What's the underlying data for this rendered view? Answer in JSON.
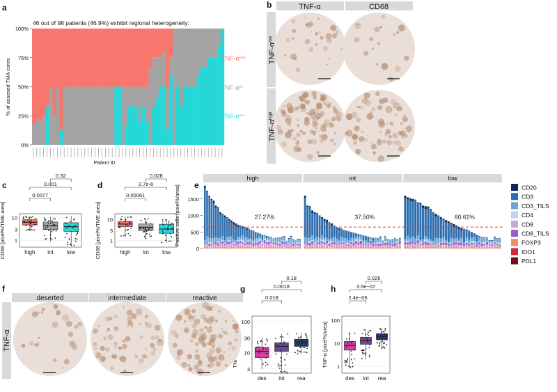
{
  "panel_labels": {
    "a": "a",
    "b": "b",
    "c": "c",
    "d": "d",
    "e": "e",
    "f": "f",
    "g": "g",
    "h": "h"
  },
  "colors": {
    "tnf_high": "#f8766d",
    "tnf_int": "#a3a3a3",
    "tnf_low": "#26d7d8",
    "strip": "#d9d9d9",
    "des": "#d63fa0",
    "int_g": "#6a4a96",
    "rea": "#1f3b73",
    "cd20": "#0b2a57",
    "cd3": "#2e6fb0",
    "cd3_tils": "#6aa6d8",
    "cd4": "#bcd6ea",
    "cd8": "#c9a8d6",
    "cd8_tils": "#9b59c6",
    "foxp3": "#f08a67",
    "ido1": "#cf2a3e",
    "pdl1": "#6b0e1e",
    "threshold": "#e23b3b",
    "tissue_bg": "#e9dfd8",
    "tissue_stain": "#b58a6d"
  },
  "chart_data": [
    {
      "id": "a",
      "type": "bar",
      "stacked": true,
      "title": "46 out of 98 patients (46.9%) exhibit regional heterogeneity:",
      "xlabel": "Patient ID",
      "ylabel": "% of assesed TMA cores",
      "yticks": [
        "0%",
        "25%",
        "50%",
        "75%",
        "100%"
      ],
      "ylim": [
        0,
        100
      ],
      "series_labels": {
        "high": "TNF-α",
        "high_sup": "high",
        "int": "TNF-α",
        "int_sup": "int",
        "low": "TNF-α",
        "low_sup": "low"
      },
      "patients_high_pct": [
        82,
        78,
        80,
        75,
        67,
        50,
        75,
        50,
        87,
        50,
        50,
        50,
        50,
        50,
        50,
        50,
        50,
        50,
        50,
        50,
        50,
        50,
        50,
        50,
        50,
        50,
        50,
        50,
        50,
        50,
        50,
        50,
        50,
        50,
        33,
        25,
        25,
        25,
        20,
        50,
        25,
        0,
        0,
        0,
        0,
        0,
        0,
        0,
        0,
        0,
        0,
        0,
        0,
        0,
        0,
        0
      ],
      "patients_low_pct": [
        0,
        0,
        0,
        0,
        33,
        0,
        0,
        0,
        13,
        0,
        0,
        0,
        0,
        0,
        0,
        0,
        0,
        0,
        0,
        0,
        0,
        0,
        0,
        0,
        50,
        50,
        0,
        17,
        33,
        33,
        33,
        20,
        33,
        20,
        0,
        33,
        40,
        50,
        50,
        14,
        60,
        0,
        50,
        33,
        50,
        50,
        50,
        50,
        60,
        67,
        67,
        75,
        75,
        75,
        85,
        100
      ]
    },
    {
      "id": "b",
      "type": "image-grid",
      "col_headers": [
        "TNF-α",
        "CD68"
      ],
      "row_headers": [
        {
          "base": "TNF-α",
          "sup": "low"
        },
        {
          "base": "TNF-α",
          "sup": "high"
        }
      ]
    },
    {
      "id": "c",
      "type": "box",
      "ylabel": "CD68 [pixel%/TME area]",
      "ylog": true,
      "yticks": [
        "1",
        "3",
        "10"
      ],
      "categories": [
        "high",
        "int",
        "low"
      ],
      "boxes": [
        {
          "q1": 4.8,
          "med": 6.3,
          "q3": 8.2,
          "lo": 2.7,
          "hi": 12
        },
        {
          "q1": 3.0,
          "med": 4.4,
          "q3": 6.5,
          "lo": 0.9,
          "hi": 11
        },
        {
          "q1": 2.5,
          "med": 4.0,
          "q3": 6.0,
          "lo": 0.6,
          "hi": 12
        }
      ],
      "pvalues": [
        "0.0077",
        "0.001",
        "0.32"
      ]
    },
    {
      "id": "d",
      "type": "box",
      "ylabel": "CD68 [pixel%/TME area]",
      "ylog": true,
      "yticks": [
        "1",
        "3",
        "10"
      ],
      "categories": [
        "high",
        "int",
        "low"
      ],
      "boxes": [
        {
          "q1": 4.5,
          "med": 6.0,
          "q3": 8.0,
          "lo": 1.5,
          "hi": 14
        },
        {
          "q1": 3.0,
          "med": 4.2,
          "q3": 6.0,
          "lo": 1.2,
          "hi": 11
        },
        {
          "q1": 2.2,
          "med": 3.5,
          "q3": 5.8,
          "lo": 0.8,
          "hi": 10
        }
      ],
      "pvalues": [
        "0.00061",
        "2.7e-6",
        "0.028"
      ]
    },
    {
      "id": "e",
      "type": "bar",
      "stacked": true,
      "ylabel": "Positive cells [pixel%/area]",
      "yticks": [
        "0",
        "500",
        "1000",
        "1500"
      ],
      "ylim": [
        0,
        2000
      ],
      "facets": [
        "high",
        "int",
        "low"
      ],
      "threshold": 650,
      "percentages": [
        "27.27%",
        "37.50%",
        "60.61%"
      ],
      "legend": [
        "CD20",
        "CD3",
        "CD3_TILS",
        "CD4",
        "CD8",
        "CD8_TILS",
        "FOXP3",
        "IDO1",
        "PDL1"
      ],
      "totals": [
        [
          1900,
          1750,
          1600,
          1500,
          1450,
          1300,
          1250,
          1100,
          1050,
          1000,
          950,
          900,
          850,
          800,
          760,
          720,
          700,
          680,
          650,
          620,
          600,
          560,
          540,
          500,
          470,
          450,
          420,
          400,
          380,
          360,
          320,
          300,
          280,
          250,
          220,
          200,
          170,
          150,
          120,
          100,
          80,
          60,
          50,
          40
        ],
        [
          1600,
          1300,
          1280,
          1150,
          1100,
          1080,
          1000,
          950,
          900,
          870,
          800,
          760,
          700,
          650,
          620,
          600,
          560,
          540,
          520,
          500,
          480,
          460,
          440,
          420,
          400,
          380,
          360,
          340,
          320,
          300,
          280,
          260,
          240,
          220,
          200,
          180,
          150,
          120,
          90,
          60
        ],
        [
          1600,
          1550,
          1520,
          1500,
          1480,
          1400,
          1380,
          1300,
          1280,
          1270,
          1200,
          1100,
          1050,
          1000,
          950,
          900,
          860,
          820,
          780,
          740,
          700,
          660,
          620,
          600,
          580,
          540,
          500,
          460,
          420,
          380,
          350,
          300,
          260,
          220,
          180,
          150,
          120,
          90
        ]
      ]
    },
    {
      "id": "f",
      "type": "image-strip",
      "panels": [
        "deserted",
        "intermediate",
        "reactive"
      ],
      "row_label": "TNF-α"
    },
    {
      "id": "g",
      "type": "box",
      "ylabel": "TNF-α [pixel%/area]",
      "ylog": true,
      "yticks": [
        "3",
        "10",
        "30",
        "100"
      ],
      "categories": [
        "des",
        "int",
        "rea"
      ],
      "boxes": [
        {
          "q1": 7,
          "med": 11,
          "q3": 15,
          "lo": 3,
          "hi": 30
        },
        {
          "q1": 11,
          "med": 16,
          "q3": 21,
          "lo": 2.2,
          "hi": 40
        },
        {
          "q1": 16,
          "med": 21,
          "q3": 27,
          "lo": 9,
          "hi": 42
        }
      ],
      "pvalues": [
        "0.018",
        "0.0018",
        "0.18"
      ]
    },
    {
      "id": "h",
      "type": "box",
      "ylabel": "TNF-α [pixel%/area]",
      "ylog": true,
      "yticks": [
        "1",
        "10",
        "100"
      ],
      "categories": [
        "des",
        "int",
        "rea"
      ],
      "boxes": [
        {
          "q1": 5,
          "med": 8,
          "q3": 12,
          "lo": 0.8,
          "hi": 30
        },
        {
          "q1": 9,
          "med": 13,
          "q3": 18,
          "lo": 2.0,
          "hi": 40
        },
        {
          "q1": 14,
          "med": 19,
          "q3": 26,
          "lo": 6,
          "hi": 45
        }
      ],
      "pvalues": [
        "2.4e−06",
        "3.5e−07",
        "0.026"
      ]
    }
  ]
}
